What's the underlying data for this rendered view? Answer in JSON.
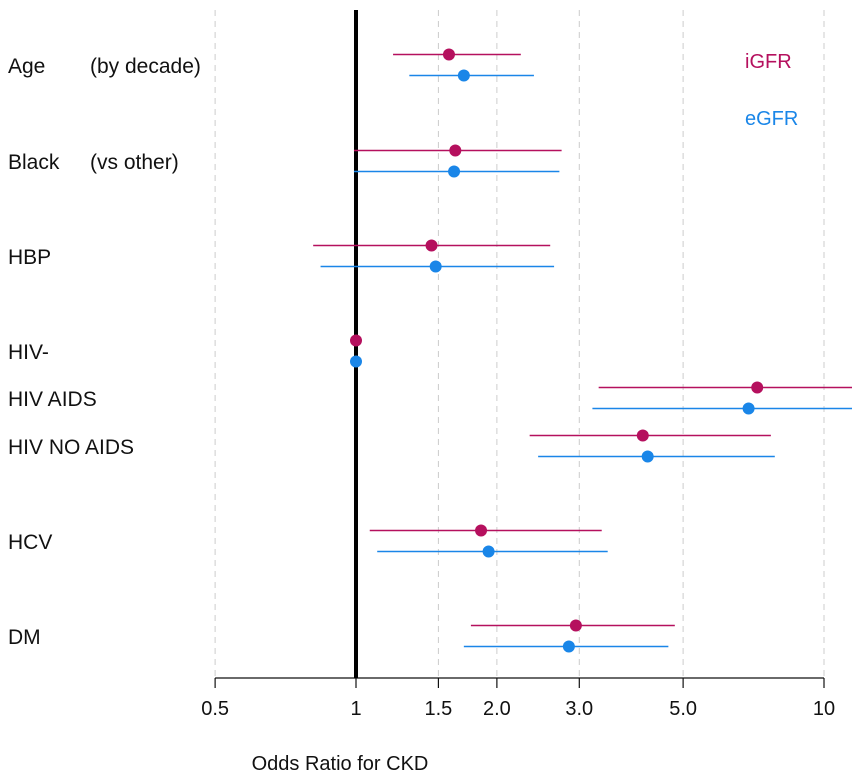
{
  "chart_data": {
    "type": "forest",
    "xlabel": "Odds Ratio for CKD",
    "x_scale": "log",
    "xlim": [
      0.5,
      12
    ],
    "x_ticks": [
      0.5,
      1,
      1.5,
      2.0,
      3.0,
      5.0,
      10
    ],
    "x_tick_labels": [
      "0.5",
      "1",
      "1.5",
      "2.0",
      "3.0",
      "5.0",
      "10"
    ],
    "grid": "vertical dashed",
    "reference_line": 1,
    "legend": {
      "placement": "top-right",
      "entries": [
        "iGFR",
        "eGFR"
      ]
    },
    "colors": {
      "iGFR": "#b5105e",
      "eGFR": "#1a86e8",
      "reference": "#000000",
      "grid": "#cccccc"
    },
    "rows": [
      {
        "label": "Age",
        "sublabel": "(by decade)"
      },
      {
        "label": "Black",
        "sublabel": "(vs other)"
      },
      {
        "label": "HBP",
        "sublabel": ""
      },
      {
        "label": "HIV-",
        "sublabel": ""
      },
      {
        "label": "HIV AIDS",
        "sublabel": ""
      },
      {
        "label": "HIV NO AIDS",
        "sublabel": ""
      },
      {
        "label": "HCV",
        "sublabel": ""
      },
      {
        "label": "DM",
        "sublabel": ""
      }
    ],
    "series": [
      {
        "name": "iGFR",
        "estimates": [
          {
            "row": 0,
            "or": 1.58,
            "lo": 1.2,
            "hi": 2.25
          },
          {
            "row": 1,
            "or": 1.63,
            "lo": 0.99,
            "hi": 2.75
          },
          {
            "row": 2,
            "or": 1.45,
            "lo": 0.81,
            "hi": 2.6
          },
          {
            "row": 3,
            "or": 1.0,
            "lo": 1.0,
            "hi": 1.0
          },
          {
            "row": 4,
            "or": 7.2,
            "lo": 3.3,
            "hi": 12.0
          },
          {
            "row": 5,
            "or": 4.1,
            "lo": 2.35,
            "hi": 7.7
          },
          {
            "row": 6,
            "or": 1.85,
            "lo": 1.07,
            "hi": 3.35
          },
          {
            "row": 7,
            "or": 2.95,
            "lo": 1.76,
            "hi": 4.8
          }
        ]
      },
      {
        "name": "eGFR",
        "estimates": [
          {
            "row": 0,
            "or": 1.7,
            "lo": 1.3,
            "hi": 2.4
          },
          {
            "row": 1,
            "or": 1.62,
            "lo": 0.99,
            "hi": 2.72
          },
          {
            "row": 2,
            "or": 1.48,
            "lo": 0.84,
            "hi": 2.65
          },
          {
            "row": 3,
            "or": 1.0,
            "lo": 1.0,
            "hi": 1.0
          },
          {
            "row": 4,
            "or": 6.9,
            "lo": 3.2,
            "hi": 12.0
          },
          {
            "row": 5,
            "or": 4.2,
            "lo": 2.45,
            "hi": 7.85
          },
          {
            "row": 6,
            "or": 1.92,
            "lo": 1.11,
            "hi": 3.45
          },
          {
            "row": 7,
            "or": 2.85,
            "lo": 1.7,
            "hi": 4.65
          }
        ]
      }
    ]
  }
}
